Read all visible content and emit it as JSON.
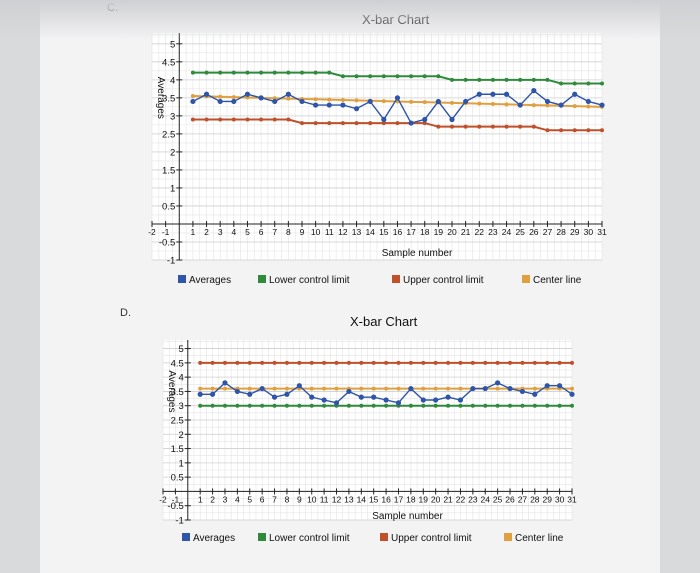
{
  "options": [
    {
      "label": "C."
    },
    {
      "label": "D."
    }
  ],
  "colors": {
    "averages": "#2e55a8",
    "lower_control_limit": "#2f8a3c",
    "upper_control_limit": "#c0502a",
    "center_line": "#e0a040"
  },
  "chart_data": [
    {
      "type": "line",
      "title": "X-bar Chart",
      "xlabel": "Sample number",
      "ylabel": "Averages",
      "ylim": [
        -1,
        5.3
      ],
      "xlim": [
        -2,
        31
      ],
      "grid": true,
      "legend_position": "bottom",
      "y_ticks": [
        "-1",
        "-0.5",
        "0.5",
        "1",
        "1.5",
        "2",
        "2.5",
        "3",
        "3.5",
        "4",
        "4.5",
        "5"
      ],
      "y_tick_values": [
        -1,
        -0.5,
        0.5,
        1,
        1.5,
        2,
        2.5,
        3,
        3.5,
        4,
        4.5,
        5
      ],
      "x_ticks": [
        "-2",
        "-1",
        "1",
        "2",
        "3",
        "4",
        "5",
        "6",
        "7",
        "8",
        "9",
        "10",
        "11",
        "12",
        "13",
        "14",
        "15",
        "16",
        "17",
        "18",
        "19",
        "20",
        "21",
        "22",
        "23",
        "24",
        "25",
        "26",
        "27",
        "28",
        "29",
        "30",
        "31"
      ],
      "x_tick_values": [
        -2,
        -1,
        1,
        2,
        3,
        4,
        5,
        6,
        7,
        8,
        9,
        10,
        11,
        12,
        13,
        14,
        15,
        16,
        17,
        18,
        19,
        20,
        21,
        22,
        23,
        24,
        25,
        26,
        27,
        28,
        29,
        30,
        31
      ],
      "x": [
        1,
        2,
        3,
        4,
        5,
        6,
        7,
        8,
        9,
        10,
        11,
        12,
        13,
        14,
        15,
        16,
        17,
        18,
        19,
        20,
        21,
        22,
        23,
        24,
        25,
        26,
        27,
        28,
        29,
        30,
        31
      ],
      "series": [
        {
          "name": "Averages",
          "values": [
            3.4,
            3.6,
            3.4,
            3.4,
            3.6,
            3.5,
            3.4,
            3.6,
            3.4,
            3.3,
            3.3,
            3.3,
            3.2,
            3.4,
            2.9,
            3.5,
            2.8,
            2.9,
            3.4,
            2.9,
            3.4,
            3.6,
            3.6,
            3.6,
            3.3,
            3.7,
            3.4,
            3.3,
            3.6,
            3.4,
            3.3
          ]
        },
        {
          "name": "Lower control limit",
          "values": [
            4.2,
            4.2,
            4.2,
            4.2,
            4.2,
            4.2,
            4.2,
            4.2,
            4.2,
            4.2,
            4.2,
            4.1,
            4.1,
            4.1,
            4.1,
            4.1,
            4.1,
            4.1,
            4.1,
            4.0,
            4.0,
            4.0,
            4.0,
            4.0,
            4.0,
            4.0,
            4.0,
            3.9,
            3.9,
            3.9,
            3.9
          ]
        },
        {
          "name": "Upper control limit",
          "values": [
            2.9,
            2.9,
            2.9,
            2.9,
            2.9,
            2.9,
            2.9,
            2.9,
            2.8,
            2.8,
            2.8,
            2.8,
            2.8,
            2.8,
            2.8,
            2.8,
            2.8,
            2.8,
            2.7,
            2.7,
            2.7,
            2.7,
            2.7,
            2.7,
            2.7,
            2.7,
            2.6,
            2.6,
            2.6,
            2.6,
            2.6
          ]
        },
        {
          "name": "Center line",
          "values": [
            3.55,
            3.54,
            3.53,
            3.52,
            3.51,
            3.5,
            3.49,
            3.48,
            3.47,
            3.46,
            3.45,
            3.44,
            3.43,
            3.42,
            3.41,
            3.4,
            3.39,
            3.38,
            3.37,
            3.36,
            3.35,
            3.34,
            3.33,
            3.32,
            3.31,
            3.3,
            3.29,
            3.28,
            3.27,
            3.26,
            3.25
          ]
        }
      ]
    },
    {
      "type": "line",
      "title": "X-bar Chart",
      "xlabel": "Sample number",
      "ylabel": "Averages",
      "ylim": [
        -1,
        5.3
      ],
      "xlim": [
        -2,
        31
      ],
      "grid": true,
      "legend_position": "bottom",
      "y_ticks": [
        "-1",
        "-0.5",
        "0.5",
        "1",
        "1.5",
        "2",
        "2.5",
        "3",
        "3.5",
        "4",
        "4.5",
        "5"
      ],
      "y_tick_values": [
        -1,
        -0.5,
        0.5,
        1,
        1.5,
        2,
        2.5,
        3,
        3.5,
        4,
        4.5,
        5
      ],
      "x_ticks": [
        "-2",
        "-1",
        "1",
        "2",
        "3",
        "4",
        "5",
        "6",
        "7",
        "8",
        "9",
        "10",
        "11",
        "12",
        "13",
        "14",
        "15",
        "16",
        "17",
        "18",
        "19",
        "20",
        "21",
        "22",
        "23",
        "24",
        "25",
        "26",
        "27",
        "28",
        "29",
        "30",
        "31"
      ],
      "x_tick_values": [
        -2,
        -1,
        1,
        2,
        3,
        4,
        5,
        6,
        7,
        8,
        9,
        10,
        11,
        12,
        13,
        14,
        15,
        16,
        17,
        18,
        19,
        20,
        21,
        22,
        23,
        24,
        25,
        26,
        27,
        28,
        29,
        30,
        31
      ],
      "x": [
        1,
        2,
        3,
        4,
        5,
        6,
        7,
        8,
        9,
        10,
        11,
        12,
        13,
        14,
        15,
        16,
        17,
        18,
        19,
        20,
        21,
        22,
        23,
        24,
        25,
        26,
        27,
        28,
        29,
        30,
        31
      ],
      "series": [
        {
          "name": "Averages",
          "values": [
            3.4,
            3.4,
            3.8,
            3.5,
            3.4,
            3.6,
            3.3,
            3.4,
            3.7,
            3.3,
            3.2,
            3.1,
            3.5,
            3.3,
            3.3,
            3.2,
            3.1,
            3.6,
            3.2,
            3.2,
            3.3,
            3.2,
            3.6,
            3.6,
            3.8,
            3.6,
            3.5,
            3.4,
            3.7,
            3.7,
            3.4
          ]
        },
        {
          "name": "Lower control limit",
          "values": [
            3.0,
            3.0,
            3.0,
            3.0,
            3.0,
            3.0,
            3.0,
            3.0,
            3.0,
            3.0,
            3.0,
            3.0,
            3.0,
            3.0,
            3.0,
            3.0,
            3.0,
            3.0,
            3.0,
            3.0,
            3.0,
            3.0,
            3.0,
            3.0,
            3.0,
            3.0,
            3.0,
            3.0,
            3.0,
            3.0,
            3.0
          ]
        },
        {
          "name": "Upper control limit",
          "values": [
            4.5,
            4.5,
            4.5,
            4.5,
            4.5,
            4.5,
            4.5,
            4.5,
            4.5,
            4.5,
            4.5,
            4.5,
            4.5,
            4.5,
            4.5,
            4.5,
            4.5,
            4.5,
            4.5,
            4.5,
            4.5,
            4.5,
            4.5,
            4.5,
            4.5,
            4.5,
            4.5,
            4.5,
            4.5,
            4.5,
            4.5
          ]
        },
        {
          "name": "Center line",
          "values": [
            3.6,
            3.6,
            3.6,
            3.6,
            3.6,
            3.6,
            3.6,
            3.6,
            3.6,
            3.6,
            3.6,
            3.6,
            3.6,
            3.6,
            3.6,
            3.6,
            3.6,
            3.6,
            3.6,
            3.6,
            3.6,
            3.6,
            3.6,
            3.6,
            3.6,
            3.6,
            3.6,
            3.6,
            3.6,
            3.6,
            3.6
          ]
        }
      ]
    }
  ]
}
